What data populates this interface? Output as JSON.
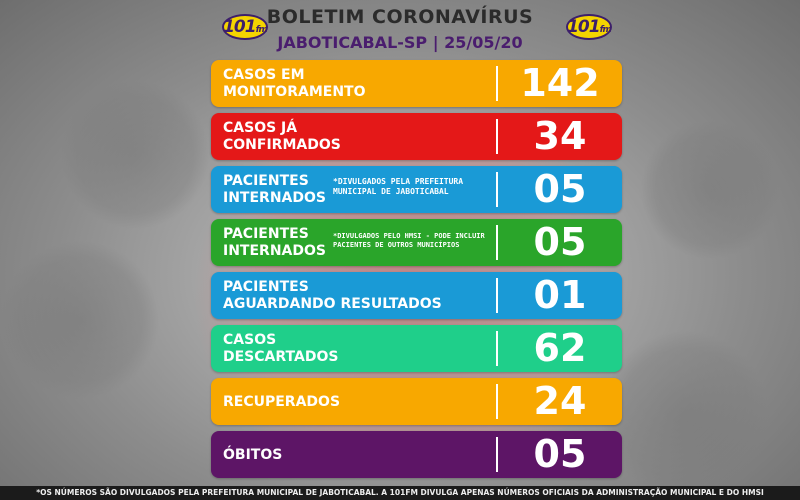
{
  "header": {
    "logo_text": "101",
    "logo_suffix": "fm",
    "title": "BOLETIM CORONAVÍRUS",
    "subtitle": "JABOTICABAL-SP | 25/05/20"
  },
  "colors": {
    "orange": "#f8a800",
    "red": "#e41818",
    "blue": "#1a9ad6",
    "green": "#2aa52a",
    "teal": "#1fcf8a",
    "purple": "#5d1566"
  },
  "rows": [
    {
      "label_line1": "CASOS EM",
      "label_line2": "MONITORAMENTO",
      "note": "",
      "value": "142"
    },
    {
      "label_line1": "CASOS JÁ",
      "label_line2": "CONFIRMADOS",
      "note": "",
      "value": "34"
    },
    {
      "label_line1": "PACIENTES",
      "label_line2": "INTERNADOS",
      "note": "*DIVULGADOS PELA PREFEITURA MUNICIPAL DE JABOTICABAL",
      "value": "05"
    },
    {
      "label_line1": "PACIENTES",
      "label_line2": "INTERNADOS",
      "note": "*DIVULGADOS PELO HMSI - PODE INCLUIR PACIENTES DE OUTROS MUNICÍPIOS",
      "value": "05"
    },
    {
      "label_line1": "PACIENTES",
      "label_line2": "AGUARDANDO RESULTADOS",
      "note": "",
      "value": "01"
    },
    {
      "label_line1": "CASOS",
      "label_line2": "DESCARTADOS",
      "note": "",
      "value": "62"
    },
    {
      "label_line1": "RECUPERADOS",
      "label_line2": "",
      "note": "",
      "value": "24"
    },
    {
      "label_line1": "ÓBITOS",
      "label_line2": "",
      "note": "",
      "value": "05"
    }
  ],
  "footer": {
    "text": "*OS NÚMEROS SÃO DIVULGADOS PELA PREFEITURA MUNICIPAL DE JABOTICABAL. A 101FM DIVULGA APENAS NÚMEROS OFICIAIS DA ADMINISTRAÇÃO MUNICIPAL E DO HMSI"
  }
}
